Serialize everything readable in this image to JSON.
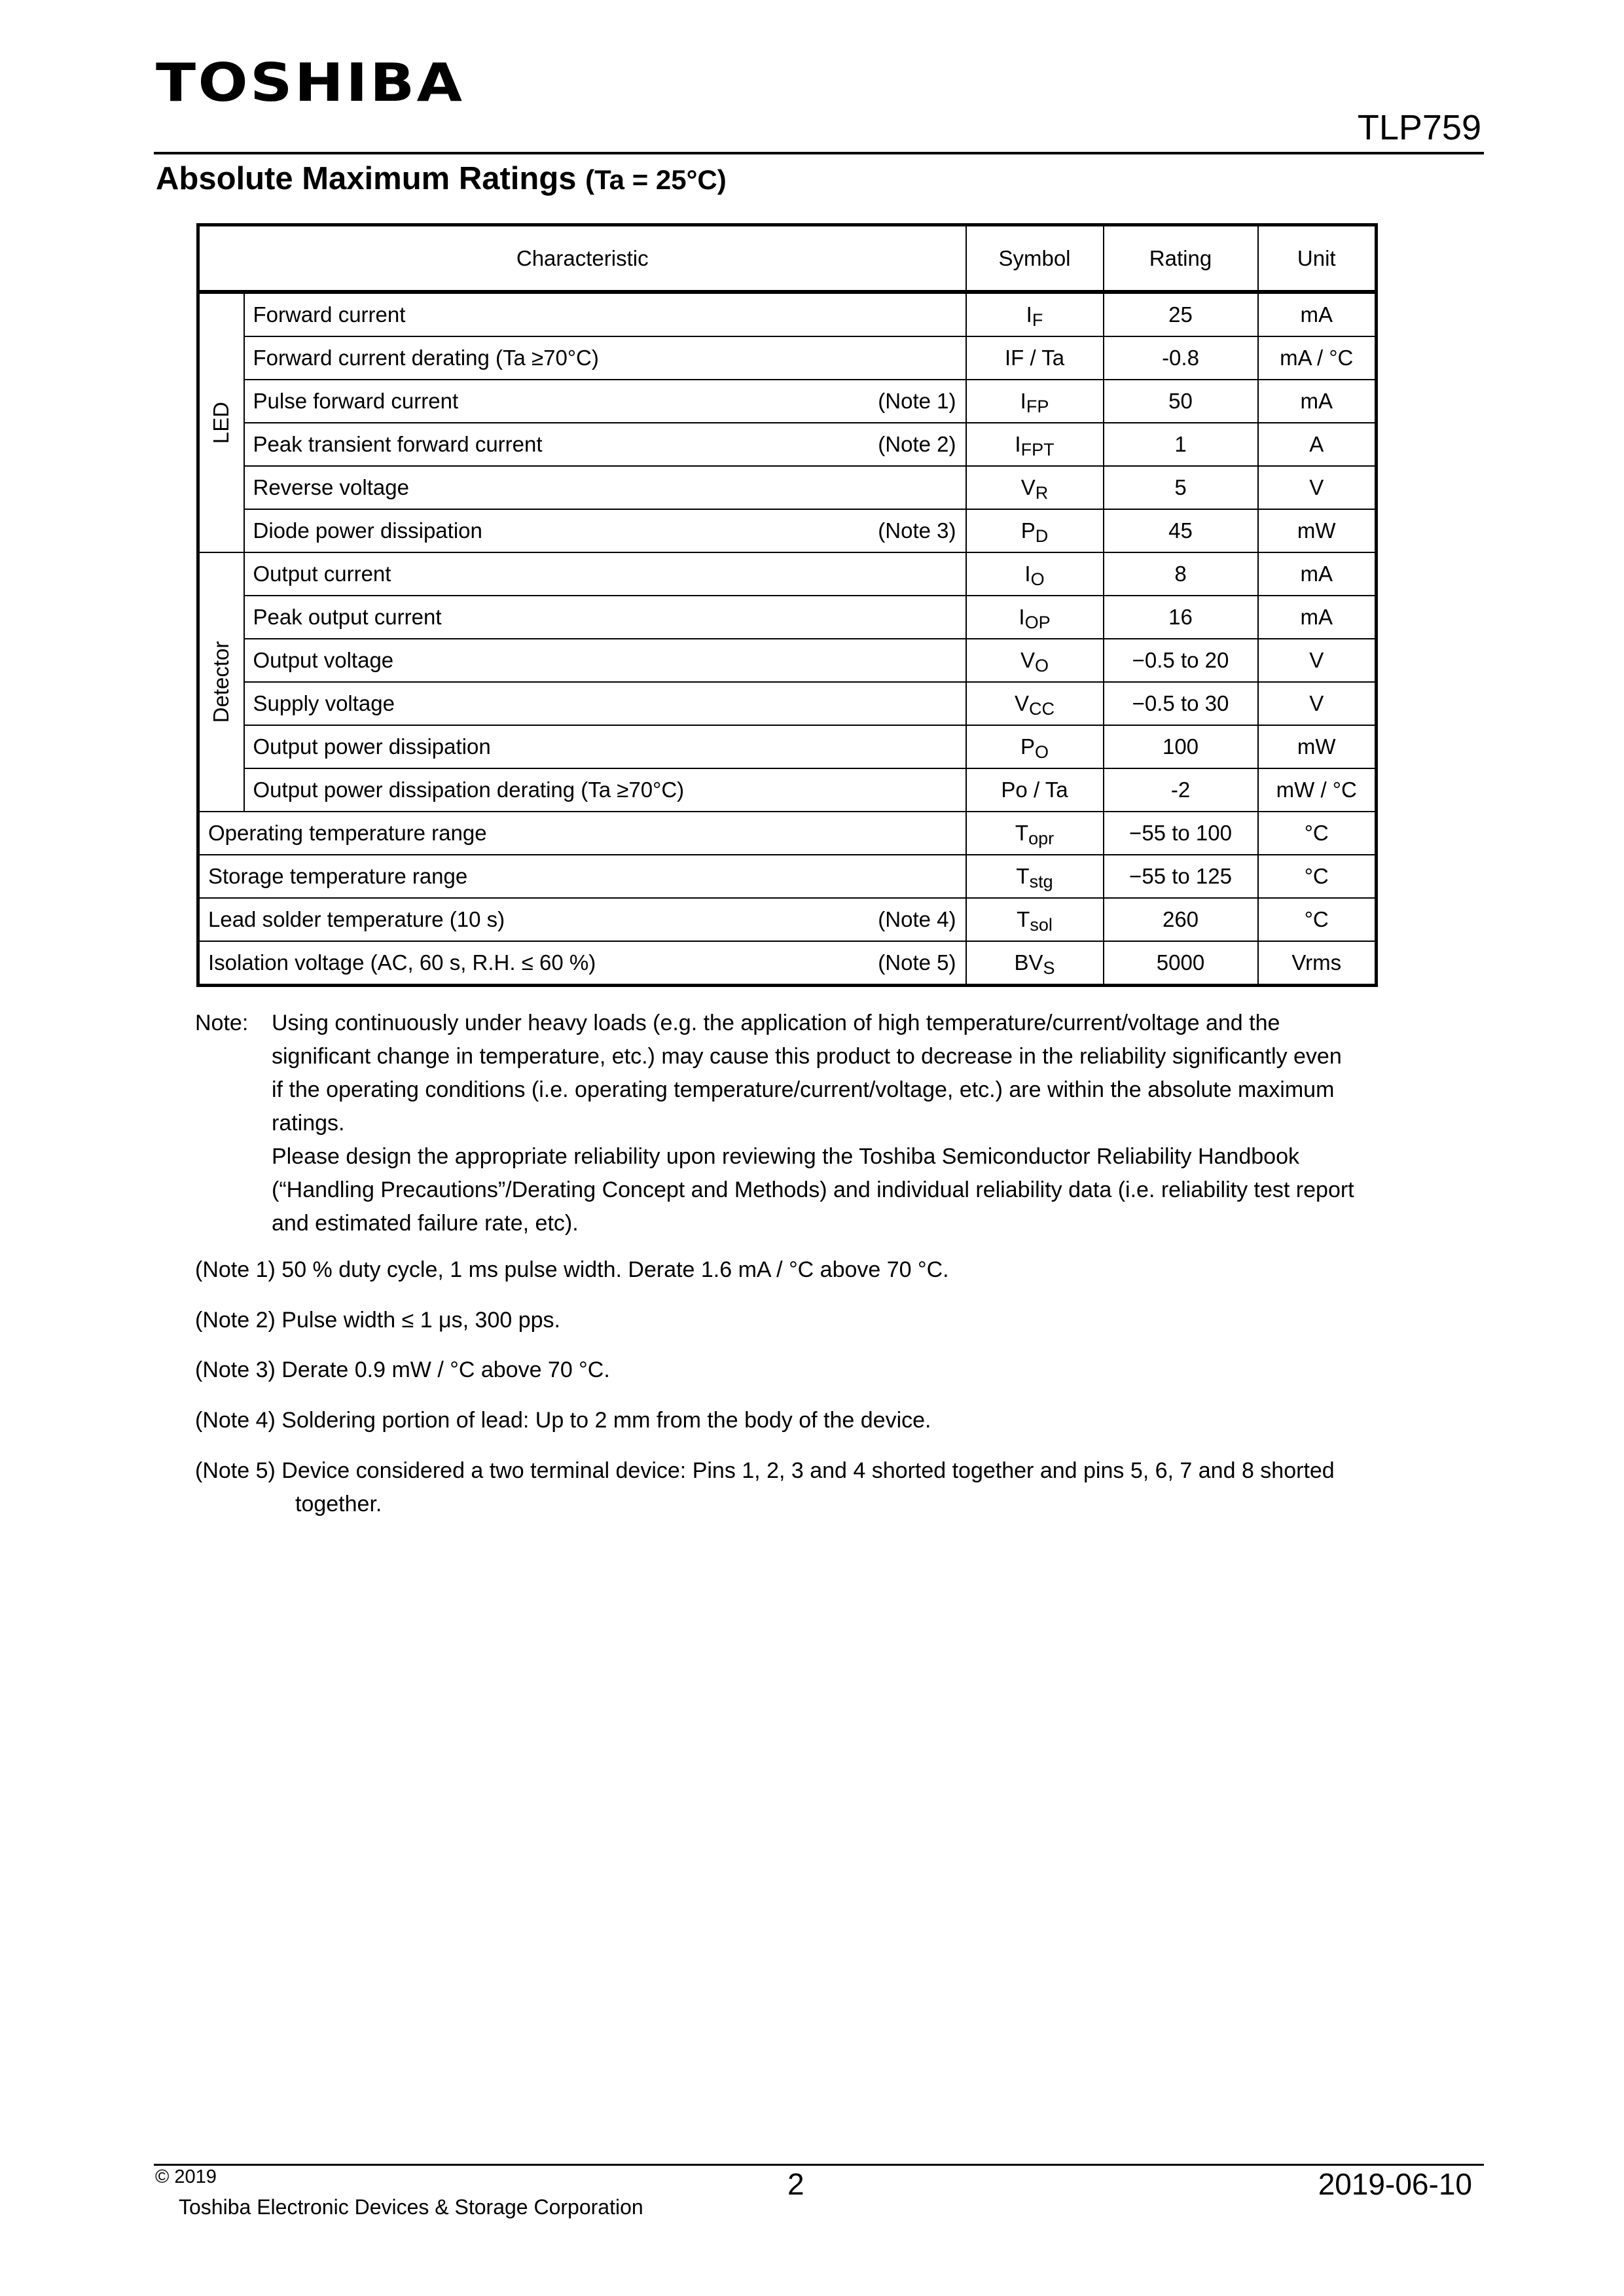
{
  "header": {
    "logo": "TOSHIBA",
    "part_number": "TLP759"
  },
  "section": {
    "title": "Absolute Maximum Ratings",
    "condition": "(Ta = 25°C)"
  },
  "table": {
    "columns": [
      "Characteristic",
      "Symbol",
      "Rating",
      "Unit"
    ],
    "groups": [
      {
        "label": "LED",
        "rows": [
          {
            "name": "Forward current",
            "note": "",
            "sym": "I",
            "sub": "F",
            "subfull": false,
            "rating": "25",
            "unit": "mA"
          },
          {
            "name": "Forward current derating (Ta ≥70°C)",
            "note": "",
            "sym": "IF / Ta",
            "sub": "",
            "rating": "-0.8",
            "unit": "mA / °C"
          },
          {
            "name": "Pulse forward current",
            "note": "(Note 1)",
            "sym": "I",
            "sub": "FP",
            "rating": "50",
            "unit": "mA"
          },
          {
            "name": "Peak transient forward current",
            "note": "(Note 2)",
            "sym": "I",
            "sub": "FPT",
            "rating": "1",
            "unit": "A"
          },
          {
            "name": "Reverse voltage",
            "note": "",
            "sym": "V",
            "sub": "R",
            "rating": "5",
            "unit": "V"
          },
          {
            "name": "Diode power dissipation",
            "note": "(Note 3)",
            "sym": "P",
            "sub": "D",
            "rating": "45",
            "unit": "mW"
          }
        ]
      },
      {
        "label": "Detector",
        "rows": [
          {
            "name": "Output current",
            "note": "",
            "sym": "I",
            "sub": "O",
            "rating": "8",
            "unit": "mA"
          },
          {
            "name": "Peak output current",
            "note": "",
            "sym": "I",
            "sub": "OP",
            "rating": "16",
            "unit": "mA"
          },
          {
            "name": "Output voltage",
            "note": "",
            "sym": "V",
            "sub": "O",
            "rating": "−0.5 to 20",
            "unit": "V"
          },
          {
            "name": "Supply voltage",
            "note": "",
            "sym": "V",
            "sub": "CC",
            "rating": "−0.5 to 30",
            "unit": "V"
          },
          {
            "name": "Output power dissipation",
            "note": "",
            "sym": "P",
            "sub": "O",
            "rating": "100",
            "unit": "mW"
          },
          {
            "name": "Output power dissipation derating (Ta ≥70°C)",
            "note": "",
            "sym": "Po / Ta",
            "sub": "",
            "rating": "-2",
            "unit": "mW / °C"
          }
        ]
      }
    ],
    "rows": [
      {
        "name": "Operating temperature range",
        "note": "",
        "sym": "T",
        "sub": "opr",
        "rating": "−55 to 100",
        "unit": "°C"
      },
      {
        "name": "Storage temperature range",
        "note": "",
        "sym": "T",
        "sub": "stg",
        "rating": "−55 to 125",
        "unit": "°C"
      },
      {
        "name": "Lead solder temperature (10 s)",
        "note": "(Note 4)",
        "sym": "T",
        "sub": "sol",
        "rating": "260",
        "unit": "°C"
      },
      {
        "name": "Isolation voltage (AC, 60 s, R.H. ≤ 60 %)",
        "note": "(Note 5)",
        "sym": "BV",
        "sub": "S",
        "rating": "5000",
        "unit": "Vrms"
      }
    ]
  },
  "notes": {
    "label": "Note:",
    "main": [
      "Using continuously under heavy loads (e.g. the application of high temperature/current/voltage and the",
      "significant change in temperature, etc.) may cause this product to decrease in the reliability significantly even",
      "if the operating conditions (i.e. operating temperature/current/voltage, etc.) are within the absolute maximum",
      "ratings.",
      "Please design the appropriate reliability upon reviewing the Toshiba Semiconductor Reliability Handbook",
      "(“Handling Precautions”/Derating Concept and Methods) and individual reliability data (i.e. reliability test report",
      "and estimated failure rate, etc)."
    ],
    "items": [
      {
        "label": "(Note 1)",
        "text": "50 % duty cycle, 1 ms pulse width. Derate 1.6 mA / °C above 70 °C."
      },
      {
        "label": "(Note 2)",
        "text": "Pulse width ≤ 1 μs, 300 pps."
      },
      {
        "label": "(Note 3)",
        "text": "Derate 0.9 mW / °C above 70 °C."
      },
      {
        "label": "(Note 4)",
        "text": "Soldering portion of lead: Up to 2 mm from the body of the device."
      },
      {
        "label": "(Note 5)",
        "text": "Device considered a two terminal device: Pins 1, 2, 3 and 4 shorted together and pins 5, 6, 7 and 8 shorted",
        "cont": "together."
      }
    ]
  },
  "footer": {
    "copyright": "© 2019",
    "company": "Toshiba Electronic Devices & Storage Corporation",
    "page": "2",
    "date": "2019-06-10"
  }
}
